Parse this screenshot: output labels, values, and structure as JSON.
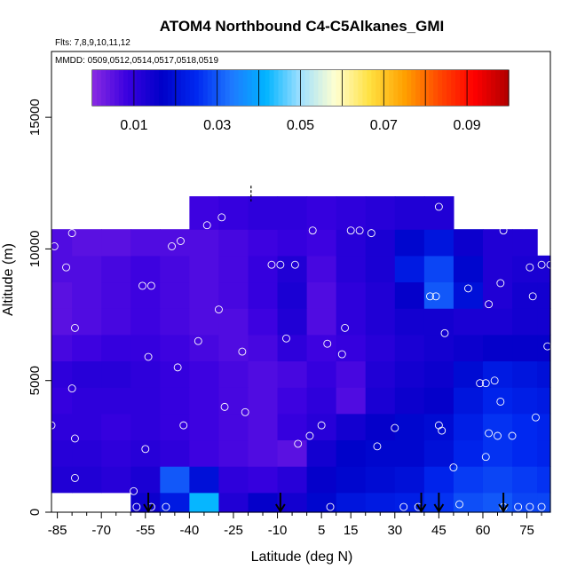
{
  "chart_data": {
    "type": "heatmap",
    "title": "ATOM4 Northbound C4-C5Alkanes_GMI",
    "subtitle_flights": "Flts: 7,8,9,10,11,12",
    "subtitle_dates": "MMDD: 0509,0512,0514,0517,0518,0519",
    "xlabel": "Latitude (deg N)",
    "ylabel": "Altitude (m)",
    "xlim": [
      -87,
      83
    ],
    "ylim": [
      0,
      17500
    ],
    "x_ticks": [
      -85,
      -70,
      -55,
      -40,
      -25,
      -10,
      5,
      15,
      30,
      45,
      60,
      75
    ],
    "x_tick_labels": [
      "-85",
      "-70",
      "-55",
      "-40",
      "-25",
      "-10",
      "5",
      "15",
      "30",
      "45",
      "60",
      "75"
    ],
    "y_ticks": [
      0,
      5000,
      10000,
      15000
    ],
    "y_tick_labels": [
      "0",
      "5000",
      "10000",
      "15000"
    ],
    "colorbar": {
      "range": [
        0,
        0.1
      ],
      "tick_values": [
        0.01,
        0.03,
        0.05,
        0.07,
        0.09
      ],
      "tick_labels": [
        "0.01",
        "0.03",
        "0.05",
        "0.07",
        "0.09"
      ],
      "colors": [
        "#8a2be2",
        "#3a00e0",
        "#0000c8",
        "#0028f0",
        "#1e78ff",
        "#00b4ff",
        "#a0e0ff",
        "#ffffd0",
        "#ffe040",
        "#ffa000",
        "#ff4800",
        "#ff0000",
        "#b00000"
      ]
    },
    "field": {
      "lat_centers": [
        -85,
        -75,
        -65,
        -55,
        -45,
        -35,
        -25,
        -15,
        -5,
        5,
        15,
        25,
        35,
        45,
        55,
        65,
        75,
        82
      ],
      "alt_centers": [
        250,
        1250,
        2250,
        3250,
        4250,
        5250,
        6250,
        7250,
        8250,
        9250,
        10250,
        11250
      ],
      "values": [
        [
          null,
          null,
          null,
          0.015,
          0.022,
          0.042,
          0.012,
          0.016,
          0.014,
          0.018,
          0.021,
          0.022,
          0.023,
          0.026,
          0.029,
          0.03,
          0.028,
          0.028
        ],
        [
          0.012,
          0.012,
          0.011,
          0.013,
          0.03,
          0.02,
          0.01,
          0.009,
          0.011,
          0.016,
          0.018,
          0.019,
          0.02,
          0.024,
          0.027,
          0.028,
          0.027,
          0.026
        ],
        [
          0.011,
          0.011,
          0.01,
          0.011,
          0.01,
          0.008,
          0.007,
          0.006,
          0.005,
          0.014,
          0.017,
          0.018,
          0.018,
          0.02,
          0.024,
          0.026,
          0.025,
          0.024
        ],
        [
          0.01,
          0.01,
          0.009,
          0.01,
          0.009,
          0.008,
          0.007,
          0.006,
          0.009,
          0.011,
          0.014,
          0.016,
          0.018,
          0.019,
          0.023,
          0.026,
          0.025,
          0.024
        ],
        [
          0.009,
          0.01,
          0.01,
          0.01,
          0.009,
          0.008,
          0.007,
          0.006,
          0.008,
          0.01,
          0.006,
          0.013,
          0.015,
          0.016,
          0.021,
          0.024,
          0.023,
          0.022
        ],
        [
          0.01,
          0.011,
          0.011,
          0.01,
          0.009,
          0.008,
          0.007,
          0.006,
          0.007,
          0.009,
          0.007,
          0.012,
          0.014,
          0.015,
          0.019,
          0.022,
          0.021,
          0.02
        ],
        [
          0.007,
          0.008,
          0.009,
          0.009,
          0.008,
          0.007,
          0.006,
          0.007,
          0.01,
          0.008,
          0.009,
          0.011,
          0.013,
          0.014,
          0.015,
          0.016,
          0.016,
          0.016
        ],
        [
          0.005,
          0.006,
          0.007,
          0.008,
          0.007,
          0.006,
          0.006,
          0.008,
          0.012,
          0.006,
          0.01,
          0.012,
          0.014,
          0.014,
          0.013,
          0.013,
          0.014,
          0.014
        ],
        [
          0.005,
          0.006,
          0.007,
          0.008,
          0.007,
          0.006,
          0.007,
          0.009,
          0.013,
          0.006,
          0.01,
          0.012,
          0.016,
          0.03,
          0.02,
          0.012,
          0.014,
          0.014
        ],
        [
          0.006,
          0.006,
          0.007,
          0.008,
          0.007,
          0.006,
          0.007,
          0.009,
          0.012,
          0.007,
          0.011,
          0.013,
          0.022,
          0.028,
          0.018,
          0.012,
          0.013,
          0.013
        ],
        [
          0.006,
          0.005,
          0.005,
          0.006,
          0.006,
          0.006,
          0.007,
          0.008,
          0.009,
          0.008,
          0.011,
          0.013,
          0.018,
          0.021,
          0.015,
          0.012,
          0.012,
          null
        ],
        [
          null,
          null,
          null,
          null,
          null,
          0.008,
          0.009,
          0.01,
          0.01,
          0.009,
          0.01,
          0.011,
          0.012,
          0.012,
          null,
          null,
          null,
          null
        ]
      ]
    },
    "observations": [
      [
        -86,
        10100
      ],
      [
        -82,
        9300
      ],
      [
        -80,
        10600
      ],
      [
        -79,
        7000
      ],
      [
        -80,
        4700
      ],
      [
        -79,
        2800
      ],
      [
        -79,
        1300
      ],
      [
        -87,
        3300
      ],
      [
        -59,
        800
      ],
      [
        -56,
        8600
      ],
      [
        -53,
        8600
      ],
      [
        -54,
        5900
      ],
      [
        -55,
        2400
      ],
      [
        -58,
        200
      ],
      [
        -53,
        200
      ],
      [
        -48,
        200
      ],
      [
        -46,
        10100
      ],
      [
        -43,
        10300
      ],
      [
        -44,
        5500
      ],
      [
        -42,
        3300
      ],
      [
        -37,
        6500
      ],
      [
        -34,
        10900
      ],
      [
        -30,
        7700
      ],
      [
        -29,
        11200
      ],
      [
        -28,
        4000
      ],
      [
        -21,
        3800
      ],
      [
        -22,
        6100
      ],
      [
        -12,
        9400
      ],
      [
        -9,
        9400
      ],
      [
        -4,
        9400
      ],
      [
        -7,
        6600
      ],
      [
        -3,
        2600
      ],
      [
        2,
        10700
      ],
      [
        1,
        2900
      ],
      [
        5,
        3300
      ],
      [
        7,
        6400
      ],
      [
        8,
        200
      ],
      [
        12,
        6000
      ],
      [
        13,
        7000
      ],
      [
        15,
        10700
      ],
      [
        18,
        10700
      ],
      [
        22,
        10600
      ],
      [
        24,
        2500
      ],
      [
        30,
        3200
      ],
      [
        33,
        200
      ],
      [
        38,
        200
      ],
      [
        42,
        8200
      ],
      [
        44,
        8200
      ],
      [
        45,
        3300
      ],
      [
        46,
        3100
      ],
      [
        45,
        11600
      ],
      [
        47,
        6800
      ],
      [
        50,
        1700
      ],
      [
        52,
        300
      ],
      [
        55,
        8500
      ],
      [
        56,
        11200
      ],
      [
        59,
        4900
      ],
      [
        61,
        4900
      ],
      [
        62,
        7900
      ],
      [
        61,
        2100
      ],
      [
        62,
        3000
      ],
      [
        64,
        5000
      ],
      [
        65,
        2900
      ],
      [
        66,
        8700
      ],
      [
        66,
        4200
      ],
      [
        67,
        10700
      ],
      [
        70,
        2900
      ],
      [
        72,
        200
      ],
      [
        74,
        10900
      ],
      [
        76,
        9300
      ],
      [
        77,
        8200
      ],
      [
        78,
        3600
      ],
      [
        80,
        200
      ],
      [
        80,
        9400
      ],
      [
        82,
        6300
      ],
      [
        83,
        9400
      ],
      [
        76,
        200
      ],
      [
        67,
        200
      ]
    ],
    "annotations": {
      "arrow_latitudes": [
        -54,
        -9,
        39,
        45,
        67
      ],
      "dashed_marker": {
        "lat": -19,
        "alt_range": [
          11800,
          12400
        ]
      }
    }
  }
}
